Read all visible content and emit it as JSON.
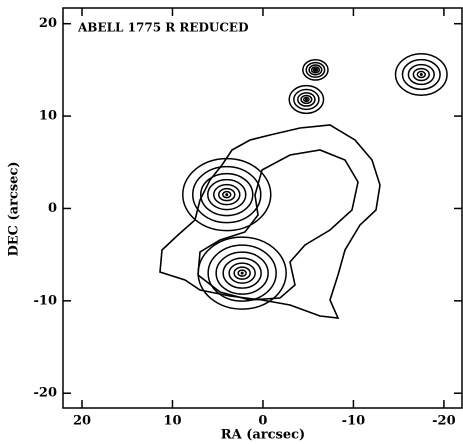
{
  "chart_data": {
    "type": "contour",
    "title": "ABELL 1775 R REDUCED",
    "x_label": "RA (arcsec)",
    "y_label": "DEC (arcsec)",
    "xlim": [
      22.1,
      -22
    ],
    "ylim": [
      -21.6,
      21.7
    ],
    "xticks": [
      20,
      10,
      0,
      -10,
      -20
    ],
    "yticks": [
      -20,
      -10,
      0,
      10,
      20
    ],
    "sources": {
      "x": [
        4,
        2.3,
        -17.5,
        -5.8,
        -4.8
      ],
      "y": [
        1.5,
        -7,
        14.5,
        15,
        11.8
      ]
    },
    "color": "#000000"
  }
}
